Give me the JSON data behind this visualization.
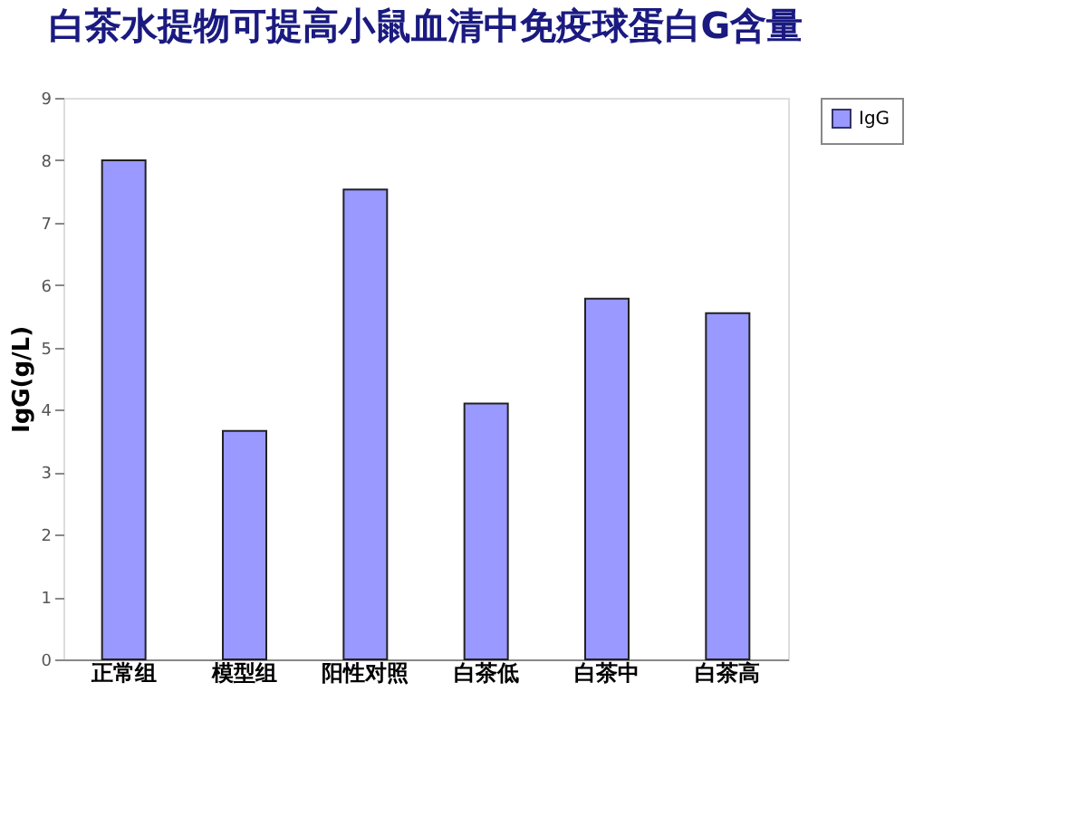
{
  "chart_data": {
    "type": "bar",
    "title": "白茶水提物可提高小鼠血清中免疫球蛋白G含量",
    "ylabel": "IgG(g/L)",
    "categories": [
      "正常组",
      "模型组",
      "阳性对照",
      "白茶低",
      "白茶中",
      "白茶高"
    ],
    "series": [
      {
        "name": "IgG",
        "color": "#9999ff",
        "values": [
          8.0,
          3.66,
          7.53,
          4.1,
          5.78,
          5.55
        ]
      }
    ],
    "ylim": [
      0,
      9
    ],
    "yticks": [
      0,
      1,
      2,
      3,
      4,
      5,
      6,
      7,
      8,
      9
    ],
    "grid": false,
    "legend": "right"
  }
}
